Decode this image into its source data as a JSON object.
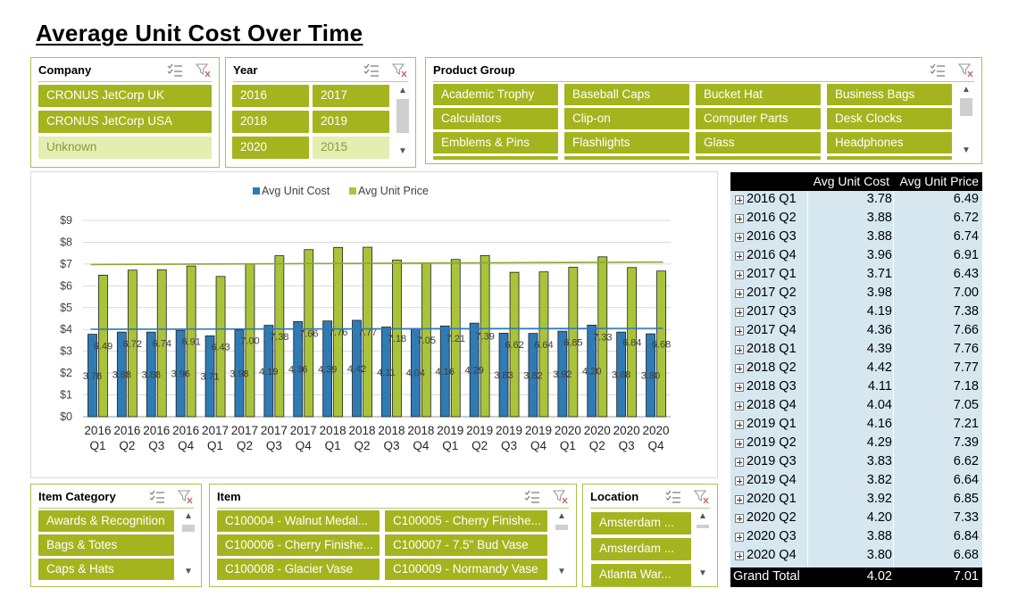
{
  "title": "Average Unit Cost Over Time",
  "colors": {
    "accent": "#a4b41e",
    "accent_dim": "#e3eeb0",
    "cost_bar": "#2f7bb4",
    "price_bar": "#a9c43a",
    "pivot_bg": "#d6e7f0"
  },
  "slicers": {
    "company": {
      "title": "Company",
      "items": [
        "CRONUS JetCorp UK",
        "CRONUS JetCorp USA",
        "Unknown"
      ]
    },
    "year": {
      "title": "Year",
      "items": [
        "2016",
        "2017",
        "2018",
        "2019",
        "2020",
        "2015"
      ]
    },
    "product_group": {
      "title": "Product Group",
      "items": [
        "Academic Trophy",
        "Baseball Caps",
        "Bucket Hat",
        "Business Bags",
        "Calculators",
        "Clip-on",
        "Computer Parts",
        "Desk Clocks",
        "Emblems & Pins",
        "Flashlights",
        "Glass",
        "Headphones"
      ]
    },
    "item_category": {
      "title": "Item Category",
      "items": [
        "Awards & Recognition",
        "Bags & Totes",
        "Caps & Hats"
      ]
    },
    "item": {
      "title": "Item",
      "items": [
        "C100004 - Walnut Medal...",
        "C100005 - Cherry Finishe...",
        "C100006 - Cherry Finishe...",
        "C100007 - 7.5\" Bud Vase",
        "C100008 - Glacier Vase",
        "C100009 - Normandy Vase"
      ]
    },
    "location": {
      "title": "Location",
      "items": [
        "Amsterdam ...",
        "Amsterdam ...",
        "Atlanta War..."
      ]
    }
  },
  "chart_data": {
    "type": "bar",
    "categories": [
      "2016 Q1",
      "2016 Q2",
      "2016 Q3",
      "2016 Q4",
      "2017 Q1",
      "2017 Q2",
      "2017 Q3",
      "2017 Q4",
      "2018 Q1",
      "2018 Q2",
      "2018 Q3",
      "2018 Q4",
      "2019 Q1",
      "2019 Q2",
      "2019 Q3",
      "2019 Q4",
      "2020 Q1",
      "2020 Q2",
      "2020 Q3",
      "2020 Q4"
    ],
    "series": [
      {
        "name": "Avg Unit Cost",
        "values": [
          3.78,
          3.88,
          3.88,
          3.96,
          3.71,
          3.98,
          4.19,
          4.36,
          4.39,
          4.42,
          4.11,
          4.04,
          4.16,
          4.29,
          3.83,
          3.82,
          3.92,
          4.2,
          3.88,
          3.8
        ],
        "labels": [
          "3.78",
          "3.88",
          "3.88",
          "3.96",
          "3.71",
          "3.98",
          "4.19",
          "4.36",
          "4.39",
          "4.42",
          "4.11",
          "4.04",
          "4.16",
          "4.29",
          "3.83",
          "3.82",
          "3.92",
          "4.20",
          "3.88",
          "3.80"
        ]
      },
      {
        "name": "Avg Unit Price",
        "values": [
          6.49,
          6.72,
          6.74,
          6.91,
          6.43,
          7.0,
          7.38,
          7.66,
          7.76,
          7.77,
          7.18,
          7.05,
          7.21,
          7.39,
          6.62,
          6.64,
          6.85,
          7.33,
          6.84,
          6.68
        ],
        "labels": [
          "6.49",
          "6.72",
          "6.74",
          "6.91",
          "6.43",
          "7.00",
          "7.38",
          "7.66",
          "7.76",
          "7.77",
          "7.18",
          "7.05",
          "7.21",
          "7.39",
          "6.62",
          "6.64",
          "6.85",
          "7.33",
          "6.84",
          "6.68"
        ]
      }
    ],
    "trendlines": true,
    "y_ticks": [
      "$0",
      "$1",
      "$2",
      "$3",
      "$4",
      "$5",
      "$6",
      "$7",
      "$8",
      "$9"
    ],
    "ylim": [
      0,
      9
    ],
    "grid": true,
    "legend_position": "top"
  },
  "pivot": {
    "headers": [
      "Avg Unit Cost",
      "Avg Unit Price"
    ],
    "rows": [
      {
        "label": "2016 Q1",
        "cost": "3.78",
        "price": "6.49"
      },
      {
        "label": "2016 Q2",
        "cost": "3.88",
        "price": "6.72"
      },
      {
        "label": "2016 Q3",
        "cost": "3.88",
        "price": "6.74"
      },
      {
        "label": "2016 Q4",
        "cost": "3.96",
        "price": "6.91"
      },
      {
        "label": "2017 Q1",
        "cost": "3.71",
        "price": "6.43"
      },
      {
        "label": "2017 Q2",
        "cost": "3.98",
        "price": "7.00"
      },
      {
        "label": "2017 Q3",
        "cost": "4.19",
        "price": "7.38"
      },
      {
        "label": "2017 Q4",
        "cost": "4.36",
        "price": "7.66"
      },
      {
        "label": "2018 Q1",
        "cost": "4.39",
        "price": "7.76"
      },
      {
        "label": "2018 Q2",
        "cost": "4.42",
        "price": "7.77"
      },
      {
        "label": "2018 Q3",
        "cost": "4.11",
        "price": "7.18"
      },
      {
        "label": "2018 Q4",
        "cost": "4.04",
        "price": "7.05"
      },
      {
        "label": "2019 Q1",
        "cost": "4.16",
        "price": "7.21"
      },
      {
        "label": "2019 Q2",
        "cost": "4.29",
        "price": "7.39"
      },
      {
        "label": "2019 Q3",
        "cost": "3.83",
        "price": "6.62"
      },
      {
        "label": "2019 Q4",
        "cost": "3.82",
        "price": "6.64"
      },
      {
        "label": "2020 Q1",
        "cost": "3.92",
        "price": "6.85"
      },
      {
        "label": "2020 Q2",
        "cost": "4.20",
        "price": "7.33"
      },
      {
        "label": "2020 Q3",
        "cost": "3.88",
        "price": "6.84"
      },
      {
        "label": "2020 Q4",
        "cost": "3.80",
        "price": "6.68"
      }
    ],
    "total": {
      "label": "Grand Total",
      "cost": "4.02",
      "price": "7.01"
    }
  }
}
